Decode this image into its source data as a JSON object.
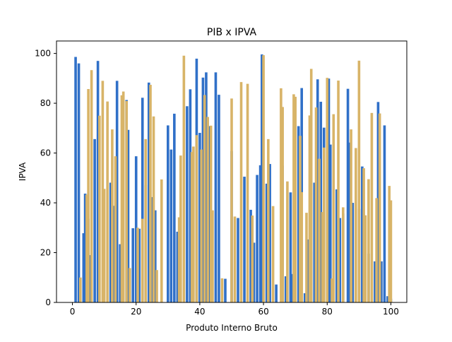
{
  "chart_data": {
    "type": "bar",
    "title": "PIB x IPVA",
    "xlabel": "Produto Interno Bruto",
    "ylabel": "IPVA",
    "xlim": [
      -5,
      105
    ],
    "ylim": [
      0,
      105
    ],
    "x_ticks": [
      0,
      20,
      40,
      60,
      80,
      100
    ],
    "y_ticks": [
      0,
      20,
      40,
      60,
      80,
      100
    ],
    "grid": false,
    "legend": "none",
    "bar_width": 0.8,
    "colors": {
      "series_a": "#3070c8",
      "series_b": "#d8b468"
    },
    "series": [
      {
        "color_key": "series_a",
        "x": [
          1,
          2,
          3.5,
          4,
          5,
          5.7,
          7,
          8,
          12,
          13,
          14,
          15,
          17,
          17.5,
          19,
          20,
          21,
          22,
          23,
          24,
          25,
          26,
          30,
          31,
          32,
          33,
          36,
          37,
          39,
          40,
          41,
          42,
          43,
          45,
          46,
          48,
          50,
          52,
          54,
          56,
          57,
          58,
          59,
          59.5,
          61,
          62,
          64,
          66,
          67,
          68.5,
          69,
          70,
          71,
          72,
          73,
          74,
          75,
          76,
          77,
          78,
          79,
          80.5,
          81,
          83,
          84,
          85,
          86.5,
          87,
          88,
          90,
          91,
          93,
          95,
          96,
          97,
          98,
          99,
          100
        ],
        "values": [
          98.6,
          96,
          27.8,
          43.7,
          33.6,
          19,
          65.6,
          97,
          48.1,
          38.8,
          89,
          23.4,
          81.3,
          69.3,
          29.8,
          58.7,
          29.6,
          82.2,
          47.1,
          88.3,
          42.3,
          37,
          71.1,
          61.4,
          75.8,
          28.4,
          78.8,
          85.6,
          97.9,
          68.1,
          90.3,
          92.4,
          70.8,
          92.4,
          83.4,
          9.5,
          60.8,
          33.9,
          50.5,
          37.2,
          24,
          51.2,
          55.1,
          99.6,
          47.7,
          55.6,
          7.2,
          55,
          10.5,
          44.2,
          11.4,
          34.2,
          70.8,
          86.1,
          3.7,
          25.3,
          20.4,
          48.1,
          89.6,
          80.6,
          70.2,
          89.9,
          63.4,
          45.4,
          33.9,
          35.7,
          85.8,
          64.2,
          40,
          37.6,
          54.6,
          19.6,
          16.5,
          80.5,
          16.5,
          71.1,
          2.5,
          1.5
        ]
      },
      {
        "color_key": "series_b",
        "x": [
          2.5,
          4.5,
          5,
          6,
          8.5,
          9.5,
          10,
          11,
          12.5,
          13.5,
          15.5,
          16,
          17,
          18,
          20.5,
          22,
          23,
          24.5,
          25.5,
          26.5,
          28,
          33.5,
          34,
          35,
          37.5,
          38,
          39,
          40.5,
          41.5,
          42.5,
          43.5,
          44,
          47,
          50,
          51,
          53,
          55,
          56.5,
          60,
          61.5,
          63,
          65.5,
          66,
          67.5,
          69.5,
          70,
          71.5,
          72,
          73.5,
          74.5,
          75,
          76.5,
          77.5,
          78.5,
          79,
          80,
          81.5,
          82,
          83.5,
          85,
          87.5,
          89,
          90,
          91.5,
          92,
          93,
          94,
          95.5,
          96.5,
          99.5,
          100
        ],
        "values": [
          10,
          43.3,
          85.7,
          93.3,
          75,
          89,
          45.6,
          80.7,
          69.5,
          58.7,
          83.2,
          84.7,
          80.9,
          13.8,
          30,
          33.6,
          65.6,
          87.4,
          74.7,
          13,
          49.4,
          34.2,
          59,
          99.1,
          60.4,
          62.6,
          67.2,
          61.4,
          83.3,
          74.5,
          71,
          37,
          9.7,
          81.9,
          34.5,
          88.5,
          87.8,
          34.9,
          99.3,
          65.6,
          38.7,
          86,
          78.5,
          48.6,
          83.6,
          82.6,
          66.9,
          44.3,
          36,
          75.1,
          93.8,
          78.3,
          57.7,
          36.3,
          62.2,
          90.2,
          9.6,
          75.6,
          89.1,
          38.2,
          69.5,
          62,
          97.1,
          53.9,
          35,
          49.5,
          76.1,
          41.9,
          75.9,
          46.8,
          41
        ]
      }
    ]
  }
}
